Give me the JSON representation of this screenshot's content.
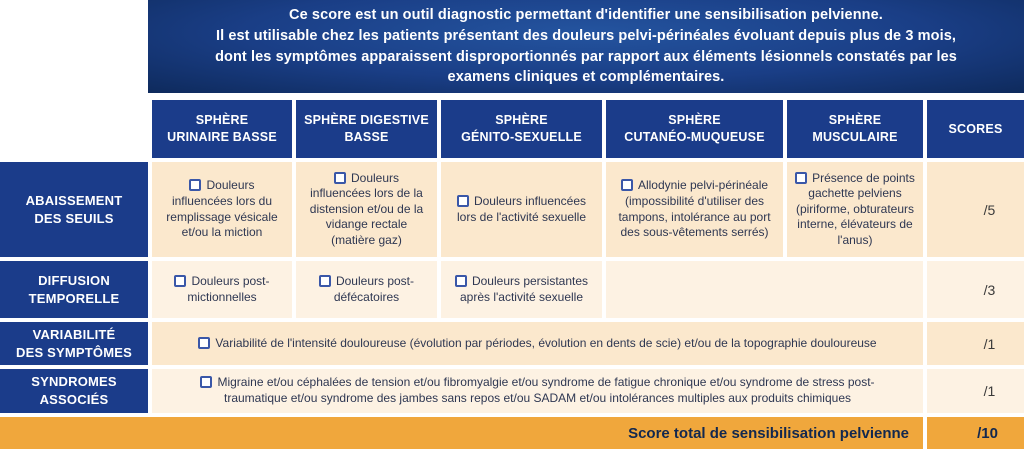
{
  "banner": {
    "text": "Ce score est un outil diagnostic permettant d'identifier une sensibilisation pelvienne.\nIl est utilisable chez les patients présentant des douleurs pelvi-périnéales évoluant depuis plus de 3 mois,\ndont les symptômes apparaissent disproportionnés par rapport aux éléments lésionnels constatés par les\nexamens cliniques et complémentaires."
  },
  "table": {
    "column_headers": [
      "SPHÈRE\nURINAIRE BASSE",
      "SPHÈRE DIGESTIVE\nBASSE",
      "SPHÈRE\nGÉNITO-SEXUELLE",
      "SPHÈRE\nCUTANÉO-MUQUEUSE",
      "SPHÈRE\nMUSCULAIRE",
      "SCORES"
    ],
    "rows": [
      {
        "label": "ABAISSEMENT\nDES SEUILS",
        "score": "/5",
        "cells": [
          {
            "text": "Douleurs influencées lors du remplissage vésicale et/ou la miction"
          },
          {
            "text": "Douleurs influencées lors de la distension et/ou de la vidange rectale (matière gaz)"
          },
          {
            "text": "Douleurs influencées lors de l'activité sexuelle"
          },
          {
            "text": "Allodynie pelvi-périnéale (impossibilité d'utiliser des tampons, intolérance au port des sous-vêtements serrés)"
          },
          {
            "text": "Présence de points gachette pelviens (piriforme, obturateurs interne, élévateurs de l'anus)"
          }
        ]
      },
      {
        "label": "DIFFUSION\nTEMPORELLE",
        "score": "/3",
        "cells": [
          {
            "text": "Douleurs post-mictionnelles"
          },
          {
            "text": "Douleurs post-défécatoires"
          },
          {
            "text": "Douleurs persistantes après l'activité sexuelle"
          }
        ]
      },
      {
        "label": "VARIABILITÉ\nDES SYMPTÔMES",
        "score": "/1",
        "merged_text": "Variabilité de l'intensité douloureuse (évolution par périodes, évolution en dents de scie) et/ou de la topographie douloureuse"
      },
      {
        "label": "SYNDROMES\nASSOCIÉS",
        "score": "/1",
        "merged_text": "Migraine et/ou céphalées de tension et/ou fibromyalgie et/ou syndrome de fatigue chronique et/ou syndrome de stress post-traumatique et/ou syndrome des jambes sans repos et/ou SADAM et/ou intolérances multiples aux produits chimiques"
      }
    ],
    "total": {
      "label": "Score total de sensibilisation pelvienne",
      "score": "/10"
    }
  },
  "colors": {
    "header_blue": "#1b3c8a",
    "banner_blue_center": "#24549f",
    "banner_blue_edge": "#0e2a5c",
    "row_cream": "#fbe8cd",
    "row_light_cream": "#fdf2e3",
    "total_orange": "#f0a73c",
    "checkbox_blue": "#3a57a8"
  }
}
